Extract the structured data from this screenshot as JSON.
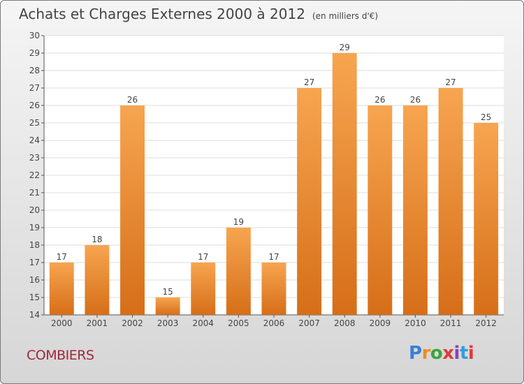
{
  "title": "Achats et Charges Externes 2000 à 2012",
  "unit": "(en milliers d'€)",
  "commune": "COMBIERS",
  "logo": {
    "letters": [
      "P",
      "r",
      "o",
      "x",
      "i",
      "t",
      "i"
    ],
    "colors": [
      "#3a7fd5",
      "#f08c1e",
      "#3aa537",
      "#e03a3a",
      "#8a3fbf",
      "#2f9fd8",
      "#e03a3a"
    ]
  },
  "colors": {
    "bar": "#f0852b",
    "bar_light": "#f7a550",
    "bar_dark": "#d66e18"
  },
  "chart_data": {
    "type": "bar",
    "categories": [
      "2000",
      "2001",
      "2002",
      "2003",
      "2004",
      "2005",
      "2006",
      "2007",
      "2008",
      "2009",
      "2010",
      "2011",
      "2012"
    ],
    "values": [
      17,
      18,
      26,
      15,
      17,
      19,
      17,
      27,
      29,
      26,
      26,
      27,
      25
    ],
    "ylim": [
      14,
      30
    ],
    "yticks": [
      14,
      15,
      16,
      17,
      18,
      19,
      20,
      21,
      22,
      23,
      24,
      25,
      26,
      27,
      28,
      29,
      30
    ],
    "grid": true
  }
}
